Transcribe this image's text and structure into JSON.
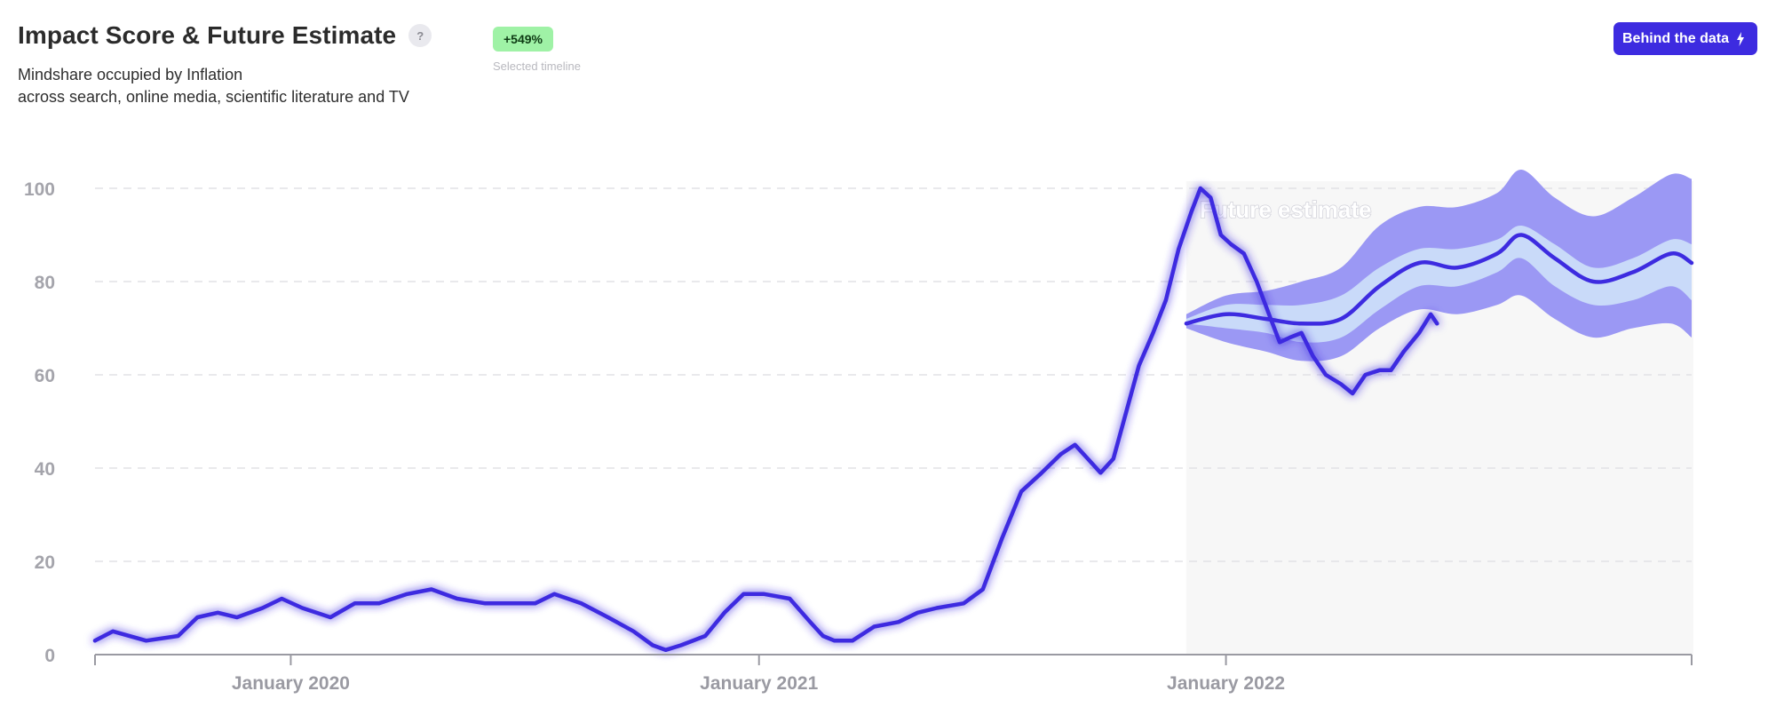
{
  "header": {
    "title": "Impact Score & Future Estimate",
    "help_label": "?",
    "subtitle_line1": "Mindshare occupied by Inflation",
    "subtitle_line2": "across search, online media, scientific literature and TV"
  },
  "badge": {
    "value": "+549%",
    "caption": "Selected timeline"
  },
  "button": {
    "label": "Behind the data",
    "icon": "lightning-bolt-icon"
  },
  "colors": {
    "line": "#3d2be0",
    "band_outer": "#9b98f4",
    "band_inner": "#c9daf9",
    "future_bg": "#f7f7f7",
    "grid": "#e2e2e6",
    "badge_bg": "#9ff2a6",
    "button_bg": "#3d2be0"
  },
  "chart_data": {
    "type": "line",
    "title": "Impact Score & Future Estimate",
    "xlabel": "",
    "ylabel": "",
    "ylim": [
      0,
      100
    ],
    "yticks": [
      0,
      20,
      40,
      60,
      80,
      100
    ],
    "grid": "horizontal dashed",
    "xlim": [
      "2019-08-01",
      "2022-12-31"
    ],
    "xticks": [
      {
        "date": "2020-01-01",
        "label": "January 2020"
      },
      {
        "date": "2021-01-01",
        "label": "January 2021"
      },
      {
        "date": "2022-01-01",
        "label": "January 2022"
      }
    ],
    "future_label": "Future estimate",
    "future_start": "2021-12-01",
    "series": [
      {
        "kind": "observed",
        "points": [
          [
            "2019-08-01",
            3
          ],
          [
            "2019-08-15",
            5
          ],
          [
            "2019-09-10",
            3
          ],
          [
            "2019-10-05",
            4
          ],
          [
            "2019-10-20",
            8
          ],
          [
            "2019-11-05",
            9
          ],
          [
            "2019-11-20",
            8
          ],
          [
            "2019-12-10",
            10
          ],
          [
            "2019-12-25",
            12
          ],
          [
            "2020-01-10",
            10
          ],
          [
            "2020-02-01",
            8
          ],
          [
            "2020-02-20",
            11
          ],
          [
            "2020-03-10",
            11
          ],
          [
            "2020-04-01",
            13
          ],
          [
            "2020-04-20",
            14
          ],
          [
            "2020-05-10",
            12
          ],
          [
            "2020-06-01",
            11
          ],
          [
            "2020-06-20",
            11
          ],
          [
            "2020-07-10",
            11
          ],
          [
            "2020-07-25",
            13
          ],
          [
            "2020-08-15",
            11
          ],
          [
            "2020-09-05",
            8
          ],
          [
            "2020-09-25",
            5
          ],
          [
            "2020-10-10",
            2
          ],
          [
            "2020-10-20",
            1
          ],
          [
            "2020-11-01",
            2
          ],
          [
            "2020-11-20",
            4
          ],
          [
            "2020-12-05",
            9
          ],
          [
            "2020-12-20",
            13
          ],
          [
            "2021-01-05",
            13
          ],
          [
            "2021-01-25",
            12
          ],
          [
            "2021-02-10",
            7
          ],
          [
            "2021-02-20",
            4
          ],
          [
            "2021-03-01",
            3
          ],
          [
            "2021-03-15",
            3
          ],
          [
            "2021-04-01",
            6
          ],
          [
            "2021-04-20",
            7
          ],
          [
            "2021-05-05",
            9
          ],
          [
            "2021-05-20",
            10
          ],
          [
            "2021-06-10",
            11
          ],
          [
            "2021-06-25",
            14
          ],
          [
            "2021-07-10",
            25
          ],
          [
            "2021-07-25",
            35
          ],
          [
            "2021-08-10",
            39
          ],
          [
            "2021-08-25",
            43
          ],
          [
            "2021-09-05",
            45
          ],
          [
            "2021-09-15",
            42
          ],
          [
            "2021-09-25",
            39
          ],
          [
            "2021-10-05",
            42
          ],
          [
            "2021-10-15",
            52
          ],
          [
            "2021-10-25",
            62
          ],
          [
            "2021-11-05",
            69
          ],
          [
            "2021-11-15",
            76
          ],
          [
            "2021-11-25",
            87
          ],
          [
            "2021-12-05",
            95
          ],
          [
            "2021-12-12",
            100
          ],
          [
            "2021-12-20",
            98
          ],
          [
            "2021-12-28",
            90
          ],
          [
            "2022-01-05",
            88
          ],
          [
            "2022-01-15",
            86
          ],
          [
            "2022-01-25",
            80
          ],
          [
            "2022-02-05",
            72
          ],
          [
            "2022-02-12",
            67
          ],
          [
            "2022-02-20",
            68
          ],
          [
            "2022-03-01",
            69
          ],
          [
            "2022-03-10",
            64
          ],
          [
            "2022-03-20",
            60
          ],
          [
            "2022-04-01",
            58
          ],
          [
            "2022-04-10",
            56
          ],
          [
            "2022-04-20",
            60
          ],
          [
            "2022-05-01",
            61
          ],
          [
            "2022-05-10",
            61
          ],
          [
            "2022-05-20",
            65
          ],
          [
            "2022-06-01",
            69
          ],
          [
            "2022-06-10",
            73
          ],
          [
            "2022-06-15",
            71
          ]
        ]
      },
      {
        "kind": "estimate",
        "points": [
          [
            "2021-12-01",
            71
          ],
          [
            "2022-01-01",
            73
          ],
          [
            "2022-02-01",
            72
          ],
          [
            "2022-03-01",
            71
          ],
          [
            "2022-04-01",
            72
          ],
          [
            "2022-05-01",
            79
          ],
          [
            "2022-06-01",
            84
          ],
          [
            "2022-07-01",
            83
          ],
          [
            "2022-08-01",
            86
          ],
          [
            "2022-08-20",
            90
          ],
          [
            "2022-09-15",
            85
          ],
          [
            "2022-10-15",
            80
          ],
          [
            "2022-11-15",
            82
          ],
          [
            "2022-12-15",
            86
          ],
          [
            "2022-12-31",
            84
          ]
        ]
      }
    ],
    "band_inner": {
      "upper": [
        72,
        75,
        75,
        75,
        77,
        83,
        87,
        87,
        89,
        92,
        88,
        83,
        85,
        89,
        88
      ],
      "lower": [
        71,
        70,
        69,
        67,
        68,
        74,
        79,
        79,
        82,
        85,
        79,
        75,
        76,
        79,
        76
      ]
    },
    "band_outer": {
      "upper": [
        73,
        77,
        78,
        80,
        83,
        92,
        96,
        96,
        99,
        104,
        98,
        94,
        98,
        103,
        102
      ],
      "lower": [
        70,
        67,
        65,
        63,
        64,
        70,
        74,
        73,
        75,
        77,
        72,
        68,
        70,
        71,
        68
      ]
    }
  }
}
